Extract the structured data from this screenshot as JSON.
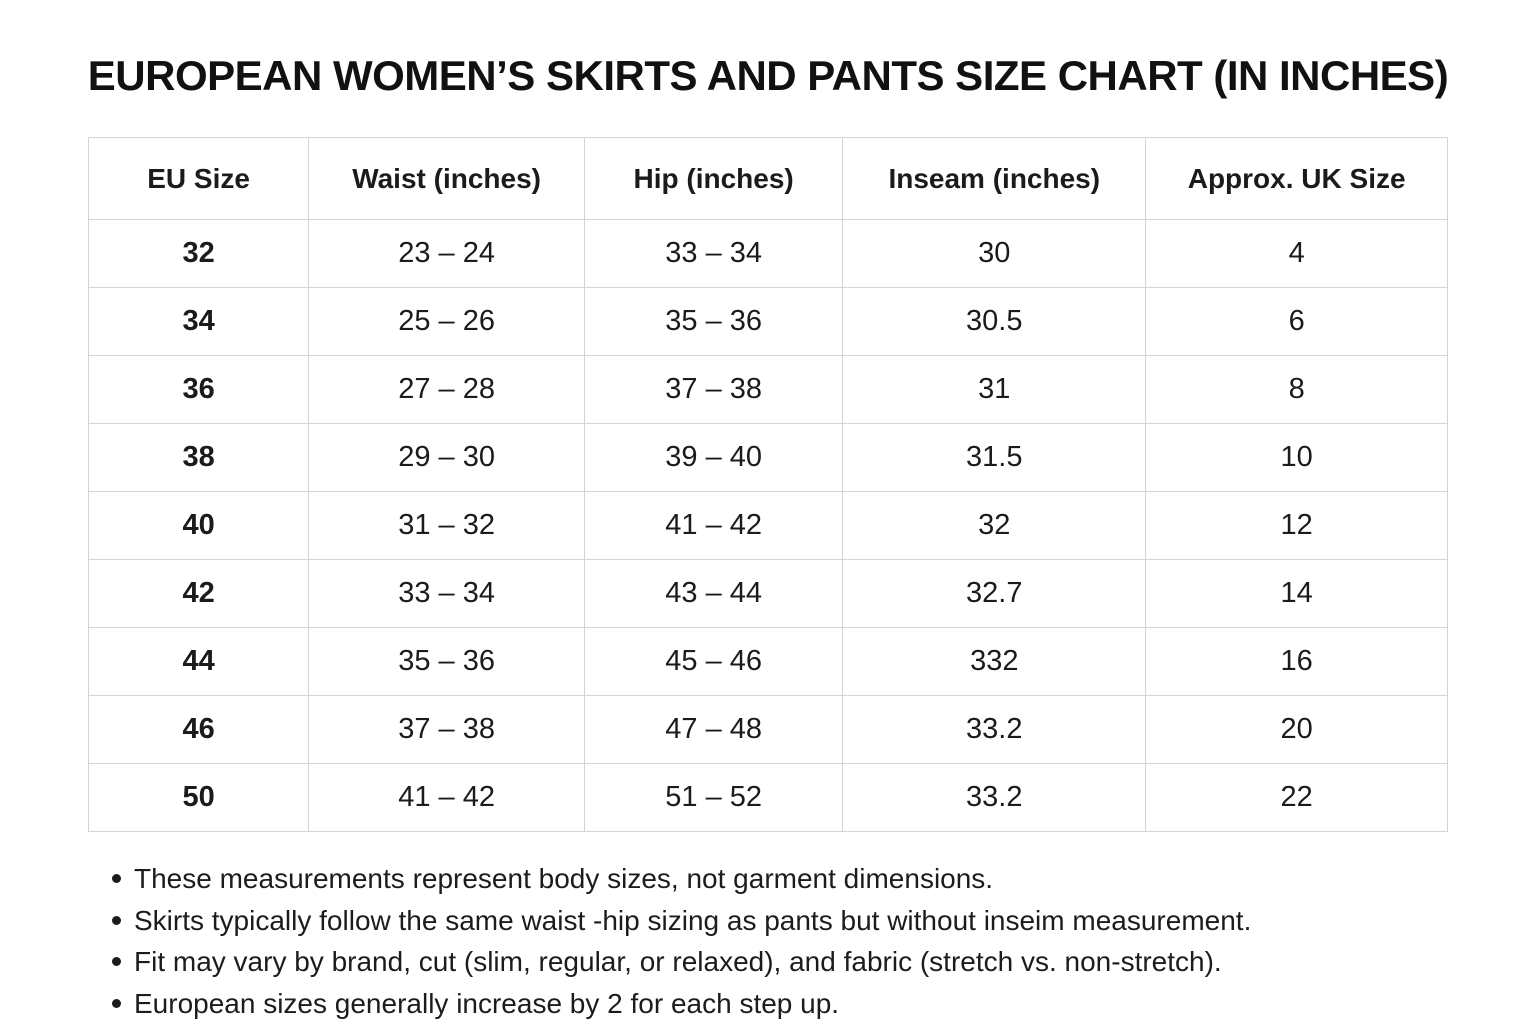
{
  "chart_data": {
    "type": "table",
    "title": "EUROPEAN WOMEN’S SKIRTS AND PANTS SIZE CHART (IN INCHES)",
    "columns": [
      "EU Size",
      "Waist (inches)",
      "Hip (inches)",
      "Inseam (inches)",
      "Approx. UK Size"
    ],
    "rows": [
      [
        "32",
        "23 – 24",
        "33 – 34",
        "30",
        "4"
      ],
      [
        "34",
        "25 – 26",
        "35 – 36",
        "30.5",
        "6"
      ],
      [
        "36",
        "27 – 28",
        "37 – 38",
        "31",
        "8"
      ],
      [
        "38",
        "29 – 30",
        "39 – 40",
        "31.5",
        "10"
      ],
      [
        "40",
        "31 – 32",
        "41 – 42",
        "32",
        "12"
      ],
      [
        "42",
        "33 – 34",
        "43 – 44",
        "32.7",
        "14"
      ],
      [
        "44",
        "35 – 36",
        "45 – 46",
        "332",
        "16"
      ],
      [
        "46",
        "37 – 38",
        "47 – 48",
        "33.2",
        "20"
      ],
      [
        "50",
        "41 – 42",
        "51 – 52",
        "33.2",
        "22"
      ]
    ],
    "legend_position": "none",
    "grid": "full-borders"
  },
  "notes": [
    "These measurements represent body sizes, not garment dimensions.",
    "Skirts typically follow the same waist -hip sizing as pants but without inseim measurement.",
    "Fit may vary by brand, cut (slim, regular, or relaxed), and fabric (stretch vs. non-stretch).",
    "European sizes generally increase by 2 for each step up."
  ],
  "colors": {
    "background": "#ffffff",
    "border": "#d4d4d4",
    "text": "#1b1b1b",
    "title": "#111111"
  }
}
